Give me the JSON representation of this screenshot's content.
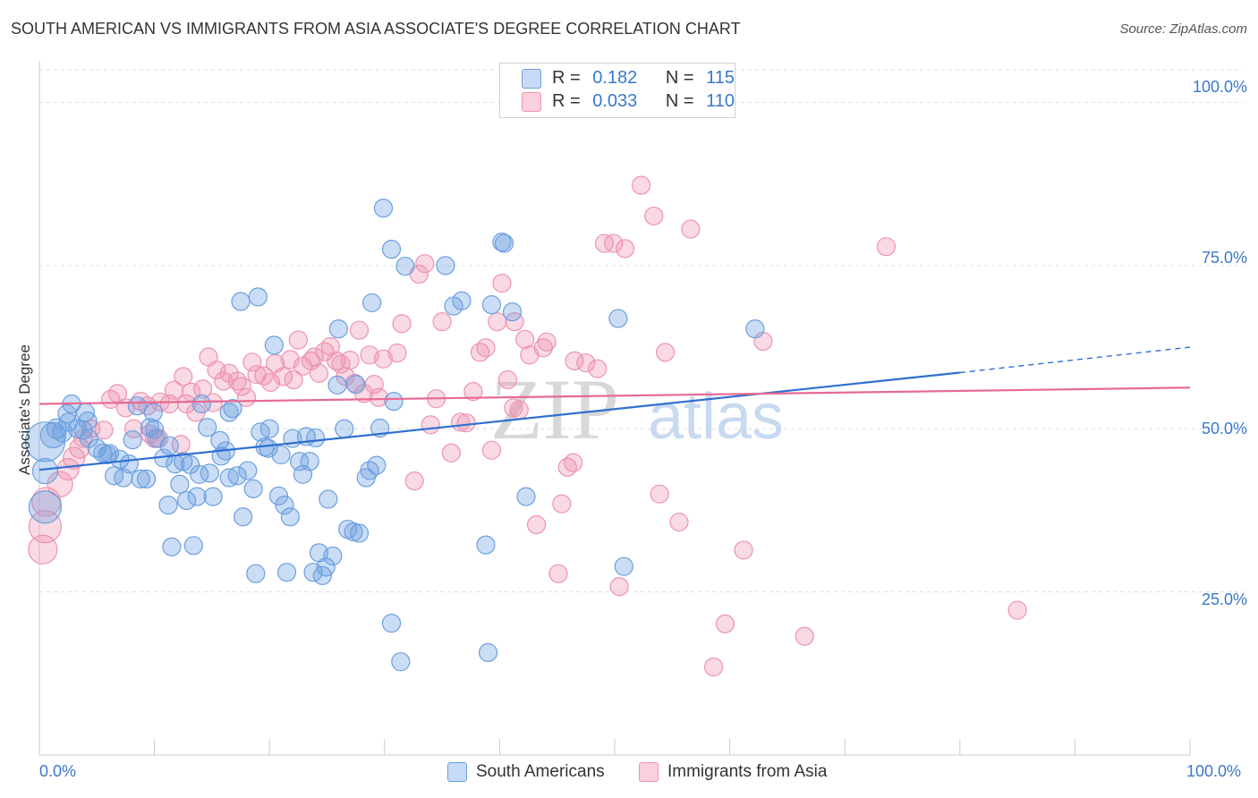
{
  "title": "SOUTH AMERICAN VS IMMIGRANTS FROM ASIA ASSOCIATE'S DEGREE CORRELATION CHART",
  "source": "Source: ZipAtlas.com",
  "watermark": {
    "zip": "ZIP",
    "atlas": "atlas"
  },
  "legend_top": {
    "rows": [
      {
        "r_label": "R =",
        "r_value": "0.182",
        "n_label": "N =",
        "n_value": "115"
      },
      {
        "r_label": "R =",
        "r_value": "0.033",
        "n_label": "N =",
        "n_value": "110"
      }
    ]
  },
  "legend_bottom": [
    "South Americans",
    "Immigrants from Asia"
  ],
  "chart_data": {
    "type": "scatter",
    "title": "SOUTH AMERICAN VS IMMIGRANTS FROM ASIA ASSOCIATE'S DEGREE CORRELATION CHART",
    "xlabel": "",
    "ylabel": "Associate's Degree",
    "xlim": [
      0,
      100
    ],
    "ylim": [
      0,
      105
    ],
    "x_tick_labels": [
      "0.0%",
      "100.0%"
    ],
    "y_tick_labels": [
      "25.0%",
      "50.0%",
      "75.0%",
      "100.0%"
    ],
    "y_ticks": [
      25,
      50,
      75,
      100
    ],
    "grid": true,
    "legend_position": "top-center",
    "colors": {
      "blue": "#6b9fe0",
      "pink": "#ee93b0",
      "blue_line": "#2f6fd0",
      "pink_line": "#e66a93"
    },
    "series": [
      {
        "name": "South Americans",
        "r": 0.182,
        "n": 115,
        "trend": {
          "x0": 0,
          "y0": 43.7,
          "x1": 80,
          "y1": 58.6,
          "dash_to_x": 100,
          "dash_to_y": 62.5
        },
        "points": [
          [
            0.5,
            48,
            22
          ],
          [
            0.5,
            38,
            18
          ],
          [
            0.5,
            43.5,
            14
          ],
          [
            1.2,
            49,
            14
          ],
          [
            1.5,
            50,
            11
          ],
          [
            2,
            49.5,
            11
          ],
          [
            2.5,
            51,
            10
          ],
          [
            2.4,
            52.3,
            10
          ],
          [
            3.3,
            50,
            10
          ],
          [
            4,
            52.5,
            10
          ],
          [
            4.2,
            51.2,
            10
          ],
          [
            3.8,
            49.8,
            10
          ],
          [
            4.3,
            48.5,
            10
          ],
          [
            5,
            47,
            10
          ],
          [
            5.5,
            46.3,
            10
          ],
          [
            5.9,
            46,
            10
          ],
          [
            6.5,
            42.8,
            10
          ],
          [
            7,
            45.3,
            10
          ],
          [
            7.3,
            42.5,
            10
          ],
          [
            7.8,
            44.6,
            10
          ],
          [
            8.1,
            48.3,
            10
          ],
          [
            8.5,
            53.5,
            10
          ],
          [
            8.8,
            42.3,
            10
          ],
          [
            9.3,
            42.3,
            10
          ],
          [
            9.6,
            50.2,
            10
          ],
          [
            9.9,
            52.5,
            10
          ],
          [
            10,
            49.9,
            10
          ],
          [
            10.2,
            48.5,
            10
          ],
          [
            10.8,
            45.5,
            10
          ],
          [
            11.2,
            38.3,
            10
          ],
          [
            11.3,
            47.4,
            10
          ],
          [
            11.5,
            31.9,
            10
          ],
          [
            11.8,
            44.6,
            10
          ],
          [
            12.2,
            41.5,
            10
          ],
          [
            12.5,
            45,
            10
          ],
          [
            12.8,
            39,
            10
          ],
          [
            13.1,
            44.5,
            10
          ],
          [
            13.4,
            32.1,
            10
          ],
          [
            13.7,
            39.6,
            10
          ],
          [
            13.9,
            43,
            10
          ],
          [
            14.1,
            53.8,
            10
          ],
          [
            14.6,
            50.2,
            10
          ],
          [
            14.8,
            43.2,
            10
          ],
          [
            15.1,
            39.6,
            10
          ],
          [
            15.7,
            48.2,
            10
          ],
          [
            15.8,
            45.8,
            10
          ],
          [
            16.2,
            46.6,
            10
          ],
          [
            16.5,
            42.5,
            10
          ],
          [
            16.8,
            53.1,
            10
          ],
          [
            17.2,
            42.8,
            10
          ],
          [
            17.5,
            69.5,
            10
          ],
          [
            17.7,
            36.5,
            10
          ],
          [
            18.1,
            43.6,
            10
          ],
          [
            18.6,
            40.8,
            10
          ],
          [
            18.8,
            27.8,
            10
          ],
          [
            19,
            70.2,
            10
          ],
          [
            19.2,
            49.5,
            10
          ],
          [
            19.6,
            47.2,
            10
          ],
          [
            19.9,
            47,
            10
          ],
          [
            20.4,
            62.8,
            10
          ],
          [
            20.8,
            39.7,
            10
          ],
          [
            21,
            46,
            10
          ],
          [
            21.3,
            38.3,
            10
          ],
          [
            21.5,
            28,
            10
          ],
          [
            21.8,
            36.5,
            10
          ],
          [
            22,
            48.5,
            10
          ],
          [
            22.6,
            45,
            10
          ],
          [
            22.9,
            43,
            10
          ],
          [
            23.2,
            48.8,
            10
          ],
          [
            23.5,
            45,
            10
          ],
          [
            23.8,
            28,
            10
          ],
          [
            24,
            48.6,
            10
          ],
          [
            24.3,
            31,
            10
          ],
          [
            24.6,
            27.5,
            10
          ],
          [
            24.9,
            28.8,
            10
          ],
          [
            25.1,
            39.2,
            10
          ],
          [
            25.5,
            30.5,
            10
          ],
          [
            25.9,
            56.7,
            10
          ],
          [
            26,
            65.3,
            10
          ],
          [
            26.5,
            50,
            10
          ],
          [
            26.8,
            34.6,
            10
          ],
          [
            27.3,
            34.2,
            10
          ],
          [
            27.5,
            56.8,
            10
          ],
          [
            27.8,
            34,
            10
          ],
          [
            28.4,
            42.5,
            10
          ],
          [
            28.7,
            43.6,
            10
          ],
          [
            28.9,
            69.3,
            10
          ],
          [
            29.3,
            44.4,
            10
          ],
          [
            29.6,
            50.1,
            10
          ],
          [
            30.6,
            77.5,
            10
          ],
          [
            29.9,
            83.8,
            10
          ],
          [
            30.8,
            54.2,
            10
          ],
          [
            30.6,
            20.2,
            10
          ],
          [
            31.4,
            14.3,
            10
          ],
          [
            31.8,
            74.9,
            10
          ],
          [
            35.3,
            75,
            10
          ],
          [
            36,
            68.8,
            10
          ],
          [
            36.7,
            69.6,
            10
          ],
          [
            39,
            15.7,
            10
          ],
          [
            38.8,
            32.2,
            10
          ],
          [
            39.3,
            69,
            10
          ],
          [
            40.2,
            78.6,
            10
          ],
          [
            40.4,
            78.4,
            10
          ],
          [
            41.1,
            67.9,
            10
          ],
          [
            42.3,
            39.6,
            10
          ],
          [
            50.3,
            66.9,
            10
          ],
          [
            50.8,
            28.9,
            10
          ],
          [
            62.2,
            65.3,
            10
          ],
          [
            2.8,
            53.8,
            10
          ],
          [
            6.1,
            46.2,
            10
          ],
          [
            16.5,
            52.5,
            10
          ],
          [
            20,
            50,
            10
          ]
        ]
      },
      {
        "name": "Immigrants from Asia",
        "r": 0.033,
        "n": 110,
        "trend": {
          "x0": 0,
          "y0": 53.8,
          "x1": 100,
          "y1": 56.3
        },
        "points": [
          [
            0.3,
            31.5,
            16
          ],
          [
            0.5,
            35,
            18
          ],
          [
            0.6,
            38.8,
            16
          ],
          [
            1.8,
            41.5,
            14
          ],
          [
            2.5,
            43.8,
            12
          ],
          [
            3,
            45.5,
            12
          ],
          [
            3.5,
            47,
            11
          ],
          [
            3.8,
            48.5,
            10
          ],
          [
            4.5,
            50,
            10
          ],
          [
            5.6,
            49.8,
            10
          ],
          [
            6.2,
            54.5,
            10
          ],
          [
            6.8,
            55.4,
            10
          ],
          [
            7.5,
            53.2,
            10
          ],
          [
            8.2,
            50,
            10
          ],
          [
            8.8,
            54.2,
            10
          ],
          [
            9.4,
            53.5,
            10
          ],
          [
            9.6,
            49.2,
            10
          ],
          [
            10,
            48.5,
            10
          ],
          [
            10.5,
            54.1,
            10
          ],
          [
            11.3,
            53.8,
            10
          ],
          [
            11.7,
            55.9,
            10
          ],
          [
            12.3,
            47.6,
            10
          ],
          [
            12.5,
            58,
            10
          ],
          [
            12.8,
            53.8,
            10
          ],
          [
            13.2,
            55.6,
            10
          ],
          [
            13.6,
            52.5,
            10
          ],
          [
            14.2,
            56.1,
            10
          ],
          [
            14.7,
            61,
            10
          ],
          [
            15.1,
            54,
            10
          ],
          [
            15.4,
            59,
            10
          ],
          [
            16,
            57.3,
            10
          ],
          [
            16.5,
            58.5,
            10
          ],
          [
            17.2,
            57.3,
            10
          ],
          [
            17.6,
            56.5,
            10
          ],
          [
            18,
            54.8,
            10
          ],
          [
            18.5,
            60.2,
            10
          ],
          [
            18.9,
            58.3,
            10
          ],
          [
            19.5,
            58.1,
            10
          ],
          [
            20.1,
            57.1,
            10
          ],
          [
            20.5,
            60,
            10
          ],
          [
            21.2,
            58,
            10
          ],
          [
            21.8,
            60.6,
            10
          ],
          [
            22.1,
            57.5,
            10
          ],
          [
            22.5,
            63.6,
            10
          ],
          [
            22.9,
            59.6,
            10
          ],
          [
            23.6,
            60.4,
            10
          ],
          [
            23.9,
            61,
            10
          ],
          [
            24.3,
            58.5,
            10
          ],
          [
            24.8,
            61.8,
            10
          ],
          [
            25.3,
            62.6,
            10
          ],
          [
            25.8,
            60.4,
            10
          ],
          [
            26.2,
            59.9,
            10
          ],
          [
            26.6,
            58,
            10
          ],
          [
            27,
            60.5,
            10
          ],
          [
            27.4,
            57,
            10
          ],
          [
            27.8,
            65.1,
            10
          ],
          [
            28.2,
            55.4,
            10
          ],
          [
            28.7,
            61.3,
            10
          ],
          [
            29.1,
            56.8,
            10
          ],
          [
            29.5,
            54.8,
            10
          ],
          [
            29.9,
            60.7,
            10
          ],
          [
            31.1,
            61.6,
            10
          ],
          [
            31.5,
            66.1,
            10
          ],
          [
            32.6,
            42,
            10
          ],
          [
            33,
            73.7,
            10
          ],
          [
            33.5,
            75.3,
            10
          ],
          [
            34,
            50.6,
            10
          ],
          [
            34.5,
            54.6,
            10
          ],
          [
            35,
            66.4,
            10
          ],
          [
            35.8,
            46.3,
            10
          ],
          [
            36.6,
            51,
            10
          ],
          [
            37.1,
            50.9,
            10
          ],
          [
            37.7,
            55.7,
            10
          ],
          [
            38.3,
            61.7,
            10
          ],
          [
            38.8,
            62.4,
            10
          ],
          [
            39.3,
            46.7,
            10
          ],
          [
            39.8,
            66.4,
            10
          ],
          [
            40.2,
            72.3,
            10
          ],
          [
            40.7,
            57.5,
            10
          ],
          [
            41.3,
            66.4,
            10
          ],
          [
            41.7,
            52.9,
            10
          ],
          [
            42.2,
            63.7,
            10
          ],
          [
            42.6,
            61.3,
            10
          ],
          [
            43.2,
            35.3,
            10
          ],
          [
            43.8,
            62.4,
            10
          ],
          [
            44.1,
            63.3,
            10
          ],
          [
            45.1,
            27.8,
            10
          ],
          [
            45.4,
            38.5,
            10
          ],
          [
            45.9,
            44.1,
            10
          ],
          [
            46.4,
            44.8,
            10
          ],
          [
            47.5,
            60.1,
            10
          ],
          [
            48.5,
            59.2,
            10
          ],
          [
            49.1,
            78.4,
            10
          ],
          [
            49.9,
            78.4,
            10
          ],
          [
            50.4,
            25.8,
            10
          ],
          [
            50.9,
            77.6,
            10
          ],
          [
            52.3,
            87.3,
            10
          ],
          [
            53.4,
            82.6,
            10
          ],
          [
            53.9,
            40,
            10
          ],
          [
            54.4,
            61.7,
            10
          ],
          [
            55.6,
            35.7,
            10
          ],
          [
            56.6,
            80.6,
            10
          ],
          [
            58.6,
            13.5,
            10
          ],
          [
            59.6,
            20.1,
            10
          ],
          [
            61.2,
            31.4,
            10
          ],
          [
            62.9,
            63.4,
            10
          ],
          [
            66.5,
            18.2,
            10
          ],
          [
            73.6,
            77.9,
            10
          ],
          [
            85,
            22.2,
            10
          ],
          [
            41.2,
            53.2,
            10
          ],
          [
            46.5,
            60.4,
            10
          ],
          [
            10.4,
            48.5,
            10
          ]
        ]
      }
    ]
  }
}
